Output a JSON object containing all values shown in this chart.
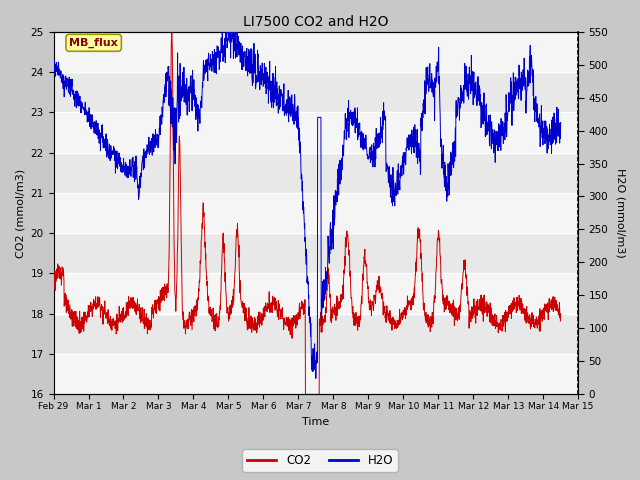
{
  "title": "LI7500 CO2 and H2O",
  "xlabel": "Time",
  "ylabel_left": "CO2 (mmol/m3)",
  "ylabel_right": "H2O (mmol/m3)",
  "xlim_days": [
    0,
    14.5
  ],
  "ylim_co2": [
    16.0,
    25.0
  ],
  "ylim_h2o": [
    0,
    550
  ],
  "yticks_co2": [
    16.0,
    17.0,
    18.0,
    19.0,
    20.0,
    21.0,
    22.0,
    23.0,
    24.0,
    25.0
  ],
  "yticks_h2o": [
    0,
    50,
    100,
    150,
    200,
    250,
    300,
    350,
    400,
    450,
    500,
    550
  ],
  "xtick_labels": [
    "Feb 29",
    "Mar 1",
    "Mar 2",
    "Mar 3",
    "Mar 4",
    "Mar 5",
    "Mar 6",
    "Mar 7",
    "Mar 8",
    "Mar 9",
    "Mar 10",
    "Mar 11",
    "Mar 12",
    "Mar 13",
    "Mar 14",
    "Mar 15"
  ],
  "xtick_positions": [
    0,
    1,
    2,
    3,
    4,
    5,
    6,
    7,
    8,
    9,
    10,
    11,
    12,
    13,
    14,
    15
  ],
  "annotation_text": "MB_flux",
  "co2_color": "#cc0000",
  "h2o_color": "#0000cc",
  "legend_co2": "CO2",
  "legend_h2o": "H2O",
  "fig_bg": "#c8c8c8",
  "plot_bg": "#e8e8e8",
  "band_color": "#d0d0d0"
}
